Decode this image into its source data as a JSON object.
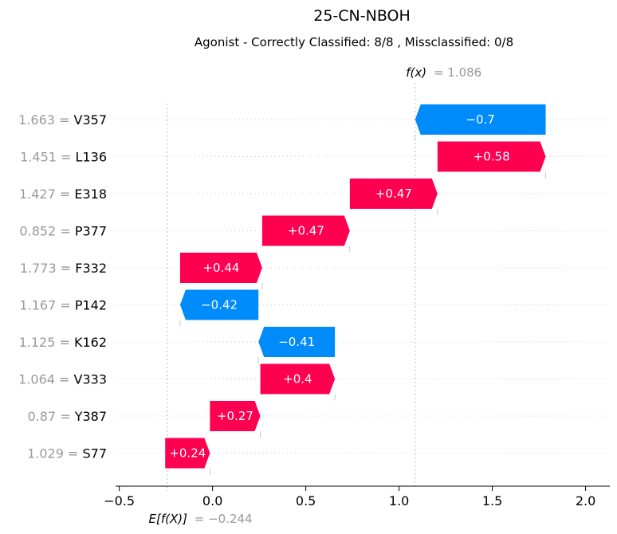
{
  "chart_data": {
    "type": "waterfall",
    "title": "25-CN-NBOH",
    "subtitle": "Agonist - Correctly Classified: 8/8 , Missclassified: 0/8",
    "fx_label": "f(x)",
    "fx_value_text": "= 1.086",
    "fx": 1.086,
    "base_label": "E[f(X)]",
    "base_value_text": "= −0.244",
    "base_value": -0.244,
    "xlim": [
      -0.52,
      2.13
    ],
    "xticks": [
      {
        "value": -0.5,
        "label": "−0.5"
      },
      {
        "value": 0.0,
        "label": "0.0"
      },
      {
        "value": 0.5,
        "label": "0.5"
      },
      {
        "value": 1.0,
        "label": "1.0"
      },
      {
        "value": 1.5,
        "label": "1.5"
      },
      {
        "value": 2.0,
        "label": "2.0"
      }
    ],
    "features": [
      {
        "value_text": "1.663",
        "name": "V357",
        "contribution": -0.7,
        "label": "−0.7",
        "start": 1.786,
        "end": 1.086
      },
      {
        "value_text": "1.451",
        "name": "L136",
        "contribution": 0.58,
        "label": "+0.58",
        "start": 1.206,
        "end": 1.786
      },
      {
        "value_text": "1.427",
        "name": "E318",
        "contribution": 0.47,
        "label": "+0.47",
        "start": 0.736,
        "end": 1.206
      },
      {
        "value_text": "0.852",
        "name": "P377",
        "contribution": 0.47,
        "label": "+0.47",
        "start": 0.266,
        "end": 0.736
      },
      {
        "value_text": "1.773",
        "name": "F332",
        "contribution": 0.44,
        "label": "+0.44",
        "start": -0.174,
        "end": 0.266
      },
      {
        "value_text": "1.167",
        "name": "P142",
        "contribution": -0.42,
        "label": "−0.42",
        "start": 0.246,
        "end": -0.174
      },
      {
        "value_text": "1.125",
        "name": "K162",
        "contribution": -0.41,
        "label": "−0.41",
        "start": 0.656,
        "end": 0.246
      },
      {
        "value_text": "1.064",
        "name": "V333",
        "contribution": 0.4,
        "label": "+0.4",
        "start": 0.256,
        "end": 0.656
      },
      {
        "value_text": "0.87",
        "name": "Y387",
        "contribution": 0.27,
        "label": "+0.27",
        "start": -0.014,
        "end": 0.256
      },
      {
        "value_text": "1.029",
        "name": "S77",
        "contribution": 0.24,
        "label": "+0.24",
        "start": -0.254,
        "end": -0.014
      }
    ],
    "colors": {
      "positive": "#ff0051",
      "negative": "#008bfb",
      "value_label": "#999999"
    }
  }
}
